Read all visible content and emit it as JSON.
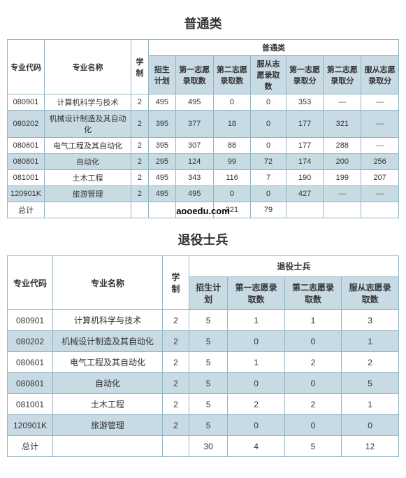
{
  "section1": {
    "title": "普通类",
    "headers": {
      "code": "专业代码",
      "name": "专业名称",
      "duration": "学制",
      "category": "普通类",
      "plan": "招生计划",
      "c1a": "第一志愿录取数",
      "c2a": "第二志愿录取数",
      "c3a": "服从志愿录取数",
      "c1b": "第一志愿录取分",
      "c2b": "第二志愿录取分",
      "c3b": "服从志愿录取分"
    },
    "rows": [
      {
        "code": "080901",
        "name": "计算机科学与技术",
        "dur": "2",
        "plan": "495",
        "v1": "495",
        "v2": "0",
        "v3": "0",
        "s1": "353",
        "s2": "—",
        "s3": "—"
      },
      {
        "code": "080202",
        "name": "机械设计制造及其自动化",
        "dur": "2",
        "plan": "395",
        "v1": "377",
        "v2": "18",
        "v3": "0",
        "s1": "177",
        "s2": "321",
        "s3": "—"
      },
      {
        "code": "080601",
        "name": "电气工程及其自动化",
        "dur": "2",
        "plan": "395",
        "v1": "307",
        "v2": "88",
        "v3": "0",
        "s1": "177",
        "s2": "288",
        "s3": "—"
      },
      {
        "code": "080801",
        "name": "自动化",
        "dur": "2",
        "plan": "295",
        "v1": "124",
        "v2": "99",
        "v3": "72",
        "s1": "174",
        "s2": "200",
        "s3": "256"
      },
      {
        "code": "081001",
        "name": "土木工程",
        "dur": "2",
        "plan": "495",
        "v1": "343",
        "v2": "116",
        "v3": "7",
        "s1": "190",
        "s2": "199",
        "s3": "207"
      },
      {
        "code": "120901K",
        "name": "旅游管理",
        "dur": "2",
        "plan": "495",
        "v1": "495",
        "v2": "0",
        "v3": "0",
        "s1": "427",
        "s2": "—",
        "s3": "—"
      }
    ],
    "total_label": "总计",
    "total_v2": "321",
    "total_v3": "79",
    "watermark": "aooedu.com"
  },
  "section2": {
    "title": "退役士兵",
    "headers": {
      "code": "专业代码",
      "name": "专业名称",
      "duration": "学制",
      "category": "退役士兵",
      "plan": "招生计划",
      "c1": "第一志愿录取数",
      "c2": "第二志愿录取数",
      "c3": "服从志愿录取数"
    },
    "rows": [
      {
        "code": "080901",
        "name": "计算机科学与技术",
        "dur": "2",
        "plan": "5",
        "v1": "1",
        "v2": "1",
        "v3": "3"
      },
      {
        "code": "080202",
        "name": "机械设计制造及其自动化",
        "dur": "2",
        "plan": "5",
        "v1": "0",
        "v2": "0",
        "v3": "1"
      },
      {
        "code": "080601",
        "name": "电气工程及其自动化",
        "dur": "2",
        "plan": "5",
        "v1": "1",
        "v2": "2",
        "v3": "2"
      },
      {
        "code": "080801",
        "name": "自动化",
        "dur": "2",
        "plan": "5",
        "v1": "0",
        "v2": "0",
        "v3": "5"
      },
      {
        "code": "081001",
        "name": "土木工程",
        "dur": "2",
        "plan": "5",
        "v1": "2",
        "v2": "2",
        "v3": "1"
      },
      {
        "code": "120901K",
        "name": "旅游管理",
        "dur": "2",
        "plan": "5",
        "v1": "0",
        "v2": "0",
        "v3": "0"
      }
    ],
    "total_label": "总计",
    "total_plan": "30",
    "total_v1": "4",
    "total_v2": "5",
    "total_v3": "12"
  }
}
